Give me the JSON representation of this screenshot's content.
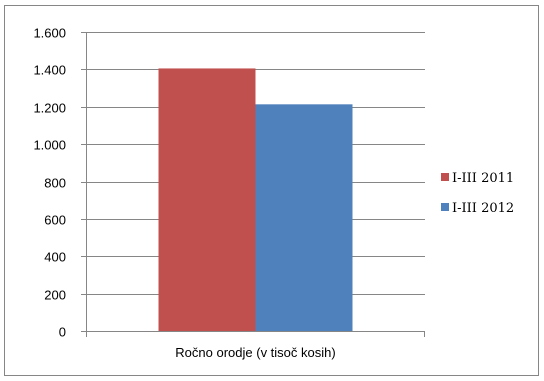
{
  "chart_data": {
    "type": "bar",
    "categories": [
      "Ročno orodje (v tisoč kosih)"
    ],
    "series": [
      {
        "name": "I-III 2011",
        "values": [
          1405
        ],
        "color": "#C0504D"
      },
      {
        "name": "I-III 2012",
        "values": [
          1213
        ],
        "color": "#4F81BD"
      }
    ],
    "ylim": [
      0,
      1600
    ],
    "yticks": [
      0,
      200,
      400,
      600,
      800,
      1000,
      1200,
      1400,
      1600
    ],
    "ytick_labels": [
      "0",
      "200",
      "400",
      "600",
      "800",
      "1.000",
      "1.200",
      "1.400",
      "1.600"
    ],
    "grid": true,
    "legend_position": "right",
    "title": "",
    "xlabel": "",
    "ylabel": ""
  }
}
